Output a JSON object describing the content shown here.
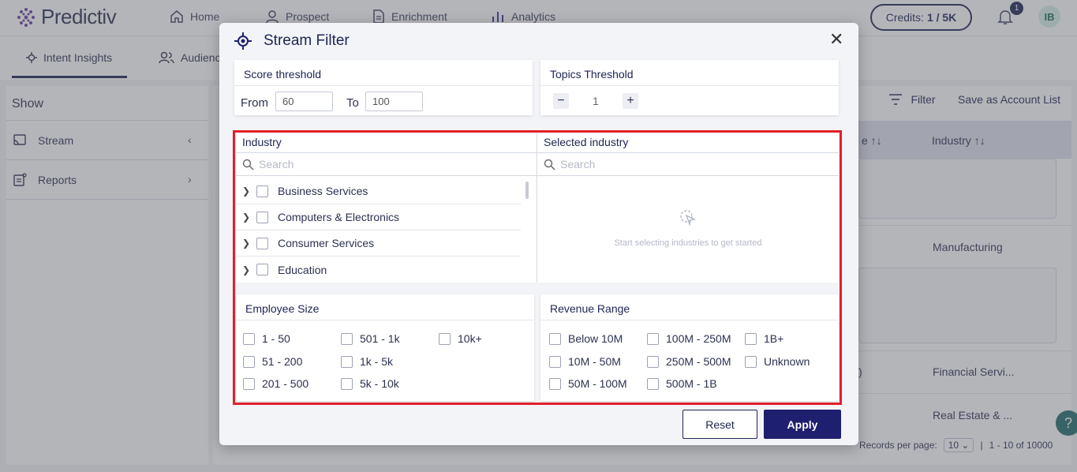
{
  "app": {
    "logo_text": "Predictiv",
    "nav": [
      "Home",
      "Prospect",
      "Enrichment",
      "Analytics"
    ],
    "credits_label": "Credits:",
    "credits_value": "1 / 5K",
    "notification_count": "1",
    "avatar_initials": "IB"
  },
  "subtabs": [
    "Intent Insights",
    "Audience"
  ],
  "sidebar": {
    "show_label": "Show",
    "items": [
      "Stream",
      "Reports"
    ]
  },
  "toolbar": {
    "filter_label": "Filter",
    "save_account_list_label": "Save as Account List"
  },
  "table": {
    "headers": [
      "e ↑↓",
      "Industry ↑↓"
    ],
    "industry_cells": [
      "Manufacturing",
      "Financial Servi...",
      "Real Estate & ..."
    ],
    "row_fragment": ")"
  },
  "pagination": {
    "records_per_page_label": "Records per page:",
    "per_page_value": "10",
    "range_text": "1 - 10 of 10000"
  },
  "help_label": "?",
  "modal": {
    "title": "Stream Filter",
    "close_label": "✕",
    "score_threshold": {
      "title": "Score threshold",
      "from_label": "From",
      "from_value": "60",
      "to_label": "To",
      "to_value": "100"
    },
    "topics_threshold": {
      "title": "Topics Threshold",
      "minus": "−",
      "value": "1",
      "plus": "+"
    },
    "industry": {
      "title": "Industry",
      "search_placeholder": "Search",
      "items": [
        "Business Services",
        "Computers & Electronics",
        "Consumer Services",
        "Education"
      ]
    },
    "selected_industry": {
      "title": "Selected industry",
      "search_placeholder": "Search",
      "empty_text": "Start selecting industries to get started"
    },
    "employee_size": {
      "title": "Employee Size",
      "options": [
        "1 - 50",
        "501 - 1k",
        "10k+",
        "51 - 200",
        "1k - 5k",
        "201 - 500",
        "5k - 10k"
      ]
    },
    "revenue_range": {
      "title": "Revenue Range",
      "options": [
        "Below 10M",
        "100M - 250M",
        "1B+",
        "10M - 50M",
        "250M - 500M",
        "Unknown",
        "50M - 100M",
        "500M - 1B"
      ]
    },
    "reset_label": "Reset",
    "apply_label": "Apply"
  },
  "colors": {
    "primary": "#1e1f6e",
    "navy": "#1e2452",
    "highlight": "#e0202b",
    "help": "#1f6c6a"
  }
}
